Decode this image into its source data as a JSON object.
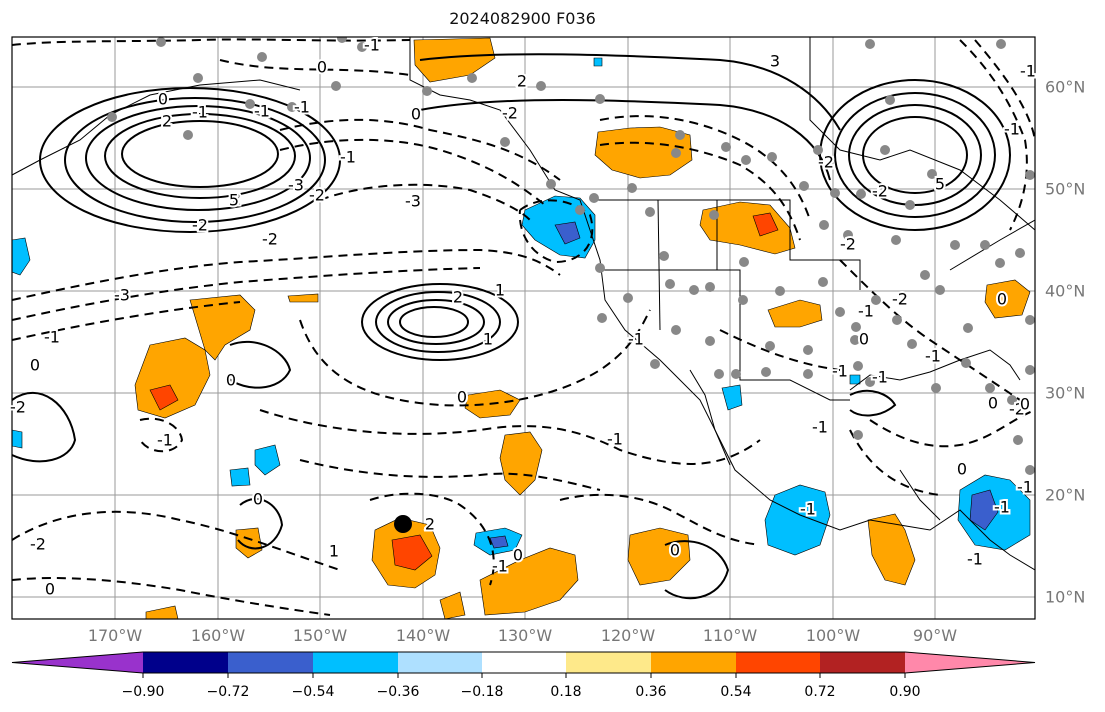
{
  "title": "2024082900 F036",
  "map": {
    "lon_labels": [
      "170°W",
      "160°W",
      "150°W",
      "140°W",
      "130°W",
      "120°W",
      "110°W",
      "100°W",
      "90°W"
    ],
    "lat_labels": [
      "60°N",
      "50°N",
      "40°N",
      "30°N",
      "20°N",
      "10°N"
    ],
    "contour_labels": [
      "-1",
      "0",
      "2",
      "-2",
      "0",
      "-1",
      "0",
      "-3",
      "2",
      "-2",
      "-3",
      "-2",
      "0",
      "-1",
      "0",
      "-2",
      "-1",
      "1",
      "2",
      "1",
      "0",
      "-1",
      "-1",
      "0",
      "-1",
      "0",
      "2",
      "1",
      "-2",
      "0",
      "3",
      "-3",
      "-2",
      "-1",
      "-1",
      "-1",
      "2",
      "-1",
      "-1",
      "-2",
      "5",
      "-2",
      "-2",
      "5",
      "-2",
      "-1",
      "0",
      "-1",
      "0",
      "-1",
      "-2",
      "-1",
      "0",
      "-1",
      "-1",
      "-1",
      "-1",
      "0",
      "0",
      "-1",
      "0"
    ],
    "colors": {
      "positive_shades": [
        "#fee98a",
        "#ffa500",
        "#ff4500",
        "#b22222",
        "#ff88aa"
      ],
      "negative_shades": [
        "#aee0ff",
        "#00bfff",
        "#3a5fcd",
        "#00008b",
        "#9932cc"
      ],
      "station_marker": "#888888",
      "storm_marker": "#000000"
    }
  },
  "colorbar": {
    "ticks": [
      "−0.90",
      "−0.72",
      "−0.54",
      "−0.36",
      "−0.18",
      "0.18",
      "0.36",
      "0.54",
      "0.72",
      "0.90"
    ],
    "colors": [
      "#9932cc",
      "#00008b",
      "#3a5fcd",
      "#00bfff",
      "#aee0ff",
      "#ffffff",
      "#fee98a",
      "#ffa500",
      "#ff4500",
      "#b22222",
      "#ff88aa"
    ]
  }
}
